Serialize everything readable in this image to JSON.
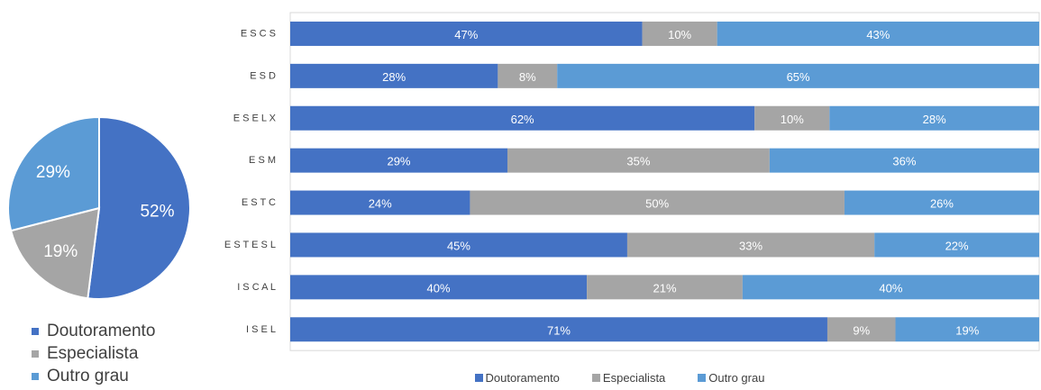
{
  "colors": {
    "doutoramento": "#4472c4",
    "especialista": "#a5a5a5",
    "outro_grau": "#5b9bd5"
  },
  "legend": [
    "Doutoramento",
    "Especialista",
    "Outro grau"
  ],
  "chart_data": [
    {
      "type": "pie",
      "slices": [
        {
          "name": "Doutoramento",
          "value": 52,
          "label": "52%"
        },
        {
          "name": "Especialista",
          "value": 19,
          "label": "19%"
        },
        {
          "name": "Outro grau",
          "value": 29,
          "label": "29%"
        }
      ],
      "legend_position": "bottom"
    },
    {
      "type": "bar",
      "orientation": "horizontal",
      "stacked": true,
      "categories": [
        "ESCS",
        "ESD",
        "ESELX",
        "ESM",
        "ESTC",
        "ESTESL",
        "ISCAL",
        "ISEL"
      ],
      "category_labels": [
        "E S C S",
        "E S D",
        "E S E L X",
        "E S M",
        "E S T C",
        "E S T E S L",
        "I S C A L",
        "I S E L"
      ],
      "series": [
        {
          "name": "Doutoramento",
          "values": [
            47,
            28,
            62,
            29,
            24,
            45,
            40,
            71
          ]
        },
        {
          "name": "Especialista",
          "values": [
            10,
            8,
            10,
            35,
            50,
            33,
            21,
            9
          ]
        },
        {
          "name": "Outro grau",
          "values": [
            43,
            65,
            28,
            36,
            26,
            22,
            40,
            19
          ]
        }
      ],
      "data_labels": [
        [
          "47%",
          "28%",
          "62%",
          "29%",
          "24%",
          "45%",
          "40%",
          "71%"
        ],
        [
          "10%",
          "8%",
          "10%",
          "35%",
          "50%",
          "33%",
          "21%",
          "9%"
        ],
        [
          "43%",
          "65%",
          "28%",
          "36%",
          "26%",
          "22%",
          "40%",
          "19%"
        ]
      ],
      "xlim": [
        0,
        100
      ],
      "legend_position": "bottom"
    }
  ]
}
